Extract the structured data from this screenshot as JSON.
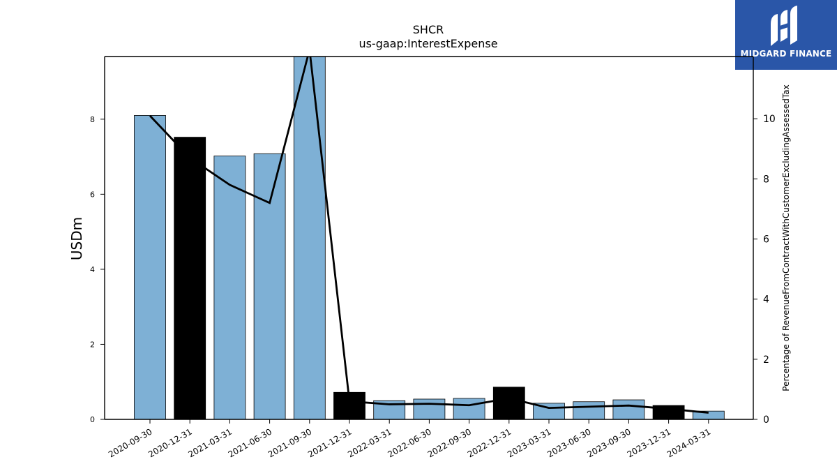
{
  "brand": {
    "name": "MIDGARD FINANCE",
    "logo_icon": "midgard-logo-icon",
    "color": "#2a56a8"
  },
  "chart_data": {
    "type": "bar",
    "title": "SHCR",
    "subtitle": "us-gaap:InterestExpense",
    "ylabel": "USDm",
    "y2label": "Percentage of RevenueFromContractWithCustomerExcludingAssessedTax",
    "categories": [
      "2020-09-30",
      "2020-12-31",
      "2021-03-31",
      "2021-06-30",
      "2021-09-30",
      "2021-12-31",
      "2022-03-31",
      "2022-06-30",
      "2022-09-30",
      "2022-12-31",
      "2023-03-31",
      "2023-06-30",
      "2023-09-30",
      "2023-12-31",
      "2024-03-31"
    ],
    "series": [
      {
        "values": [
          8.1,
          7.52,
          7.02,
          7.08,
          9.9,
          0.72,
          0.5,
          0.54,
          0.56,
          0.86,
          0.43,
          0.47,
          0.52,
          0.37,
          0.22
        ]
      },
      {
        "axis": "right",
        "values": [
          10.1,
          8.7,
          7.8,
          7.2,
          12.3,
          0.6,
          0.5,
          0.52,
          0.47,
          0.7,
          0.38,
          0.42,
          0.46,
          0.35,
          0.22
        ]
      }
    ],
    "bar_colors": [
      "#7eb0d5",
      "#000000",
      "#7eb0d5",
      "#7eb0d5",
      "#7eb0d5",
      "#000000",
      "#7eb0d5",
      "#7eb0d5",
      "#7eb0d5",
      "#000000",
      "#7eb0d5",
      "#7eb0d5",
      "#7eb0d5",
      "#000000",
      "#7eb0d5"
    ],
    "line_color": "#000000",
    "ylim": [
      0,
      9.67
    ],
    "yticks": [
      0,
      2,
      4,
      6,
      8
    ],
    "y2lim": [
      0,
      12.07
    ],
    "y2ticks": [
      0,
      2,
      4,
      6,
      8,
      10
    ],
    "grid": false
  }
}
